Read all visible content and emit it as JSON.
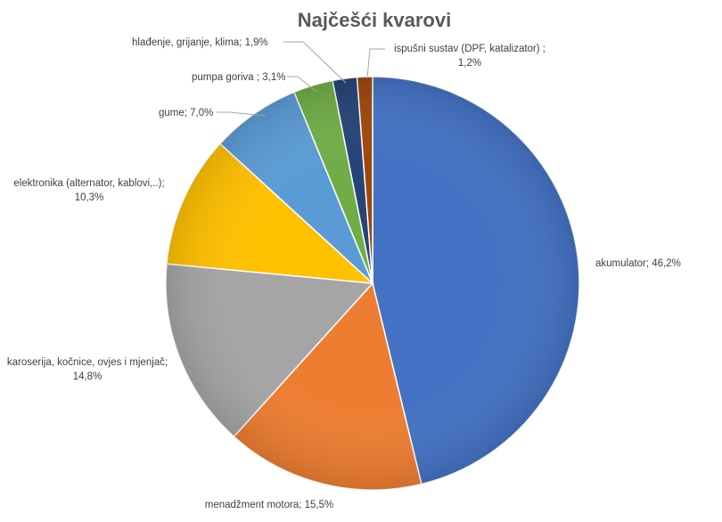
{
  "chart_data": {
    "type": "pie",
    "title": "Najčešći kvarovi",
    "slices": [
      {
        "label": "akumulator",
        "value": 46.2,
        "value_text": "46,2%",
        "color": "#4472c4"
      },
      {
        "label": "menadžment motora",
        "value": 15.5,
        "value_text": "15,5%",
        "color": "#ed7d31"
      },
      {
        "label": "karoserija, kočnice, ovjes i mjenjač",
        "value": 14.8,
        "value_text": "14,8%",
        "color": "#a5a5a5"
      },
      {
        "label": "elektronika (alternator, kablovi,..)",
        "value": 10.3,
        "value_text": "10,3%",
        "color": "#ffc000"
      },
      {
        "label": "gume",
        "value": 7.0,
        "value_text": "7,0%",
        "color": "#5b9bd5"
      },
      {
        "label": "pumpa goriva",
        "value": 3.1,
        "value_text": "3,1%",
        "color": "#70ad47"
      },
      {
        "label": "hlađenje, grijanje, klima",
        "value": 1.9,
        "value_text": "1,9%",
        "color": "#264478"
      },
      {
        "label": "ispušni sustav (DPF, katalizator)",
        "value": 1.2,
        "value_text": "1,2%",
        "color": "#9e480e"
      }
    ],
    "legend": "none"
  },
  "labels": {
    "akumulator": "akumulator; 46,2%",
    "menadzment": "menadžment motora; 15,5%",
    "karoserija_1": "karoserija, kočnice, ovjes i mjenjač;",
    "karoserija_2": "14,8%",
    "elektronika_1": "elektronika (alternator, kablovi,..);",
    "elektronika_2": "10,3%",
    "gume": "gume; 7,0%",
    "pumpa": "pumpa goriva ; 3,1%",
    "hladjenje": "hlađenje, grijanje, klima; 1,9%",
    "ispusni_1": "ispušni sustav (DPF, katalizator) ;",
    "ispusni_2": "1,2%"
  }
}
